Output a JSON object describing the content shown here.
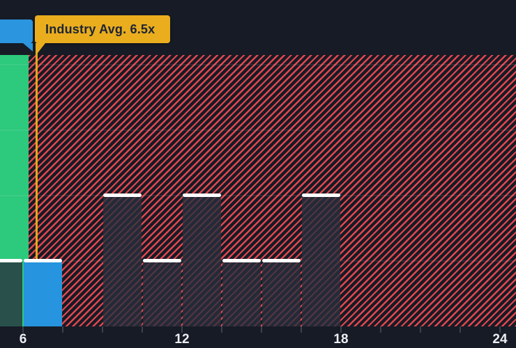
{
  "callouts": {
    "industry_avg": {
      "label": "Industry Avg. 6.5x",
      "bg_color": "#E9AD1E",
      "text_color": "#1D2433",
      "points_to_value": 6.5
    },
    "clipped_blue": {
      "visible_text": "",
      "bg_color": "#2B95DF"
    }
  },
  "chart_data": {
    "type": "bar",
    "title": "",
    "xlabel": "",
    "ylabel": "",
    "x_axis": {
      "tick_labels": [
        "6",
        "12",
        "18",
        "24"
      ],
      "tick_values": [
        6,
        12,
        18,
        24
      ],
      "minor_tick_step": 1.5,
      "visible_range": [
        5.1,
        24.6
      ],
      "unit_suffix": "x"
    },
    "y_axis": {
      "labels_visible": false,
      "gridline_count": 4,
      "units": "gridline-steps"
    },
    "series": [
      {
        "name": "multiples-histogram",
        "bars": [
          {
            "x_start": 4.5,
            "x_end": 6.0,
            "height": 1,
            "style": "dark"
          },
          {
            "x_start": 6.0,
            "x_end": 7.5,
            "height": 1,
            "style": "blue"
          },
          {
            "x_start": 9.0,
            "x_end": 10.5,
            "height": 2,
            "style": "dark"
          },
          {
            "x_start": 10.5,
            "x_end": 12.0,
            "height": 1,
            "style": "dark"
          },
          {
            "x_start": 12.0,
            "x_end": 13.5,
            "height": 2,
            "style": "dark"
          },
          {
            "x_start": 13.5,
            "x_end": 15.0,
            "height": 1,
            "style": "dark"
          },
          {
            "x_start": 15.0,
            "x_end": 16.5,
            "height": 1,
            "style": "dark"
          },
          {
            "x_start": 16.5,
            "x_end": 18.0,
            "height": 2,
            "style": "dark"
          }
        ]
      }
    ],
    "zones": {
      "green_zone": {
        "x_start": 5.1,
        "x_end": 6.2,
        "full_height": true,
        "color": "#2DC97C"
      },
      "hatched_zone": {
        "x_start": 6.2,
        "x_end": 24.6,
        "full_height": true,
        "stripe_color": "#E4464E"
      }
    },
    "reference_line": {
      "value": 6.5,
      "color": "#E3A81C",
      "label": "Industry Avg. 6.5x"
    },
    "legend": {
      "visible": false
    },
    "grid": "horizontal-only",
    "bar_colors": {
      "dark": "rgba(40,46,60,0.78)",
      "highlight": "#2694DE",
      "cap": "#FFFFFF"
    }
  },
  "colors": {
    "background": "#161B25",
    "stripe_red": "#E4464E",
    "green": "#2DC97C",
    "blue": "#2694DE",
    "gold": "#E9AD1E",
    "axis_tick": "#3A414F",
    "axis_label": "#ECEEF2"
  }
}
